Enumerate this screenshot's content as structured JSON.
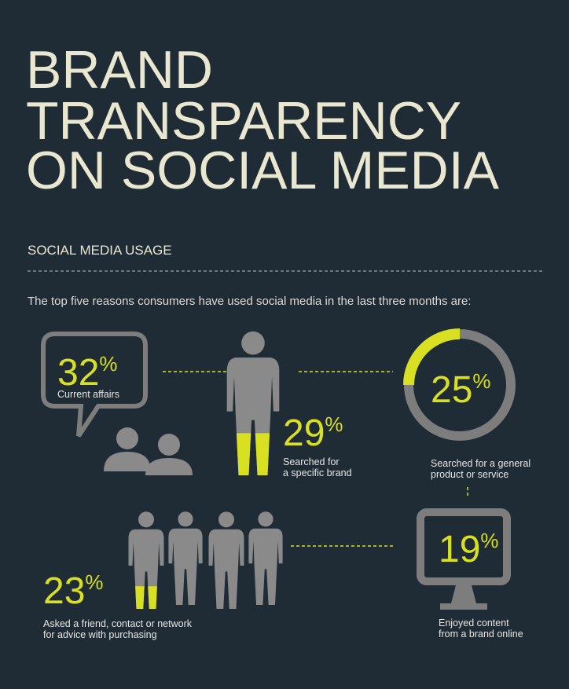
{
  "header": {
    "title_lines": [
      "BRAND",
      "TRANSPARENCY",
      "ON SOCIAL MEDIA"
    ]
  },
  "section": {
    "heading": "SOCIAL MEDIA USAGE",
    "intro": "The top five reasons consumers have used social media in the last three months are:"
  },
  "stats": [
    {
      "value": 32,
      "unit": "%",
      "label_lines": [
        "Current affairs"
      ]
    },
    {
      "value": 29,
      "unit": "%",
      "label_lines": [
        "Searched for",
        "a specific brand"
      ]
    },
    {
      "value": 25,
      "unit": "%",
      "label_lines": [
        "Searched for a general",
        "product or service"
      ]
    },
    {
      "value": 19,
      "unit": "%",
      "label_lines": [
        "Enjoyed content",
        "from a brand online"
      ]
    },
    {
      "value": 23,
      "unit": "%",
      "label_lines": [
        "Asked a friend, contact or network",
        "for advice with purchasing"
      ]
    }
  ]
}
